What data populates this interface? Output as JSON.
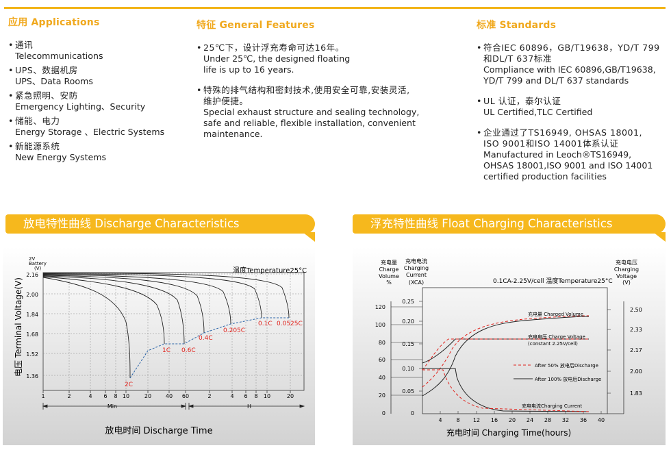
{
  "applications": {
    "title": "应用 Applications",
    "items": [
      {
        "zh": "通讯",
        "en": "Telecommunications"
      },
      {
        "zh": "UPS、数据机房",
        "en": "UPS、Data Rooms"
      },
      {
        "zh": "紧急照明、安防",
        "en": "Emergency Lighting、Security"
      },
      {
        "zh": "储能、电力",
        "en": "Energy Storage 、Electric Systems"
      },
      {
        "zh": "新能源系统",
        "en": "New Energy Systems"
      }
    ]
  },
  "features": {
    "title": "特征 General Features",
    "items": [
      {
        "zh": "25℃下，设计浮充寿命可达16年。",
        "en1": "Under 25℃,  the designed floating",
        "en2": "life is up to 16 years."
      },
      {
        "zh": "特殊的排气结构和密封技术,使用安全可靠,安装灵活,",
        "zh2": "维护便捷。",
        "en1": "Special exhaust structure and sealing technology,",
        "en2": "safe and reliable, flexible installation, convenient",
        "en3": "maintenance."
      }
    ]
  },
  "standards": {
    "title": "标准 Standards",
    "items": [
      {
        "l1": "符合IEC 60896，GB/T19638，YD/T 799",
        "l2": "和DL/T 637标准",
        "l3": "Compliance with IEC 60896,GB/T19638,",
        "l4": "YD/T 799 and DL/T 637 standards"
      },
      {
        "l1": "UL 认证，泰尔认证",
        "l2": "UL Certified,TLC Certified"
      },
      {
        "l1": "企业通过了TS16949, OHSAS 18001,",
        "l2": "ISO 9001和ISO 14001体系认证",
        "l3": "Manufactured in Leoch®TS16949,",
        "l4": "OHSAS 18001,ISO 9001 and ISO 14001",
        "l5": "certified production facilities"
      }
    ]
  },
  "discharge": {
    "banner": "放电特性曲线 Discharge Characteristics",
    "ylabel_unit_top": "2V",
    "ylabel_unit_mid": "Battery",
    "ylabel_unit_bot": "(V)",
    "ylabel": "电压 Terminal Voltage(V)",
    "temperature": "温度Temperature25°C",
    "xlabel": "放电时间 Discharge Time",
    "min_label": "Min",
    "h_label": "H",
    "chart_data": {
      "type": "line",
      "y_ticks": [
        "2.16",
        "2.00",
        "1.84",
        "1.68",
        "1.52",
        "1.36"
      ],
      "x_ticks_min": [
        "1",
        "2",
        "4",
        "6",
        "8",
        "10",
        "20",
        "40",
        "60"
      ],
      "x_ticks_h": [
        "2",
        "4",
        "6",
        "8",
        "10",
        "20"
      ],
      "rates": [
        "2C",
        "1C",
        "0.6C",
        "0.4C",
        "0.205C",
        "0.1C",
        "0.0525C"
      ]
    }
  },
  "float": {
    "banner": "浮充特性曲线 Float Charging Characteristics",
    "vol_zh": "充电量",
    "vol_en1": "Charge",
    "vol_en2": "Volume",
    "vol_unit": "%",
    "cur_zh": "充电电流",
    "cur_en1": "Charging",
    "cur_en2": "Current",
    "cur_unit": "(XCA)",
    "volt_zh": "充电电压",
    "volt_en1": "Charging",
    "volt_en2": "Voltage",
    "volt_unit": "(V)",
    "condition": "0.1CA-2.25V/cell  温度Temperature25°C",
    "legend_volume": "充电量 Charged Volume",
    "legend_voltage": "充电电压 Charge Voltage",
    "legend_voltage2": "(constant 2.25V/cell)",
    "legend_after50": "After 50%  放电后Discharge",
    "legend_after100": "After 100%  放电后Discharge",
    "legend_current": "充电电流Charging Current",
    "xlabel": "充电时间 Charging Time(hours)",
    "chart_data": {
      "type": "line",
      "volume_ticks": [
        "120",
        "100",
        "80",
        "60",
        "40",
        "20",
        "0"
      ],
      "current_ticks": [
        "0.25",
        "0.20",
        "0.15",
        "0.10",
        "0.05",
        "0"
      ],
      "voltage_ticks": [
        "2.50",
        "2.33",
        "2.17",
        "2.00",
        "1.83"
      ],
      "x_ticks": [
        "4",
        "8",
        "12",
        "16",
        "20",
        "24",
        "28",
        "32",
        "36",
        "40"
      ]
    }
  }
}
